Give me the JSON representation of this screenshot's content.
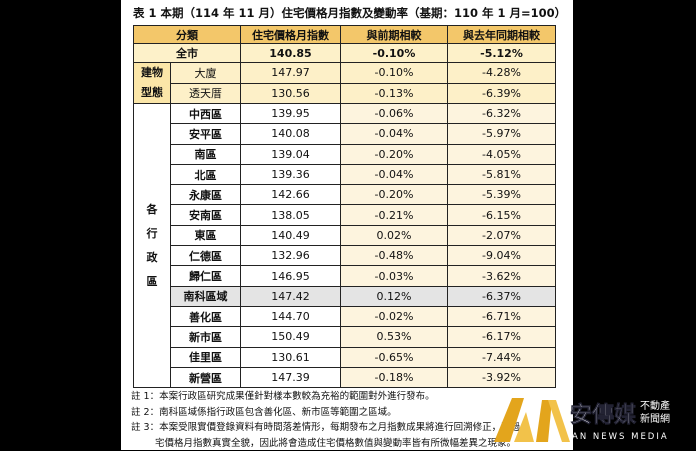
{
  "title": "表 1 本期（114 年 11 月）住宅價格月指數及變動率（基期：110 年 1 月=100）",
  "table": {
    "header": {
      "category": "分類",
      "columns": [
        "住宅價格月指數",
        "與前期相較",
        "與去年同期相較"
      ]
    },
    "total": {
      "label": "全市",
      "cells": [
        "140.85",
        "-0.10%",
        "-5.12%"
      ]
    },
    "groups": [
      {
        "label": "建物型態",
        "rows": [
          {
            "label": "大廈",
            "cells": [
              "147.97",
              "-0.10%",
              "-4.28%"
            ]
          },
          {
            "label": "透天厝",
            "cells": [
              "130.56",
              "-0.13%",
              "-6.39%"
            ]
          }
        ]
      },
      {
        "label": "各行政區",
        "rows": [
          {
            "label": "中西區",
            "cells": [
              "139.95",
              "-0.06%",
              "-6.32%"
            ]
          },
          {
            "label": "安平區",
            "cells": [
              "140.08",
              "-0.04%",
              "-5.97%"
            ]
          },
          {
            "label": "南區",
            "cells": [
              "139.04",
              "-0.20%",
              "-4.05%"
            ]
          },
          {
            "label": "北區",
            "cells": [
              "139.36",
              "-0.04%",
              "-5.81%"
            ]
          },
          {
            "label": "永康區",
            "cells": [
              "142.66",
              "-0.20%",
              "-5.39%"
            ]
          },
          {
            "label": "安南區",
            "cells": [
              "138.05",
              "-0.21%",
              "-6.15%"
            ]
          },
          {
            "label": "東區",
            "cells": [
              "140.49",
              "0.02%",
              "-2.07%"
            ]
          },
          {
            "label": "仁德區",
            "cells": [
              "132.96",
              "-0.48%",
              "-9.04%"
            ]
          },
          {
            "label": "歸仁區",
            "cells": [
              "146.95",
              "-0.03%",
              "-3.62%"
            ]
          },
          {
            "label": "南科區域",
            "cells": [
              "147.42",
              "0.12%",
              "-6.37%"
            ],
            "highlighted": true
          },
          {
            "label": "善化區",
            "cells": [
              "144.70",
              "-0.02%",
              "-6.71%"
            ]
          },
          {
            "label": "新市區",
            "cells": [
              "150.49",
              "0.53%",
              "-6.17%"
            ]
          },
          {
            "label": "佳里區",
            "cells": [
              "130.61",
              "-0.65%",
              "-7.44%"
            ]
          },
          {
            "label": "新營區",
            "cells": [
              "147.39",
              "-0.18%",
              "-3.92%"
            ]
          }
        ]
      }
    ]
  },
  "notes": [
    [
      "註 1：本案行政區研究成果僅針對樣本數較為充裕的範圍對外進行發布。"
    ],
    [
      "註 2：南科區域係指行政區包含善化區、新市區等範圍之區域。"
    ],
    [
      "註 3：本案受限實價登錄資料有時間落差情形，每期發布之月指數成果將進行回溯修正，透過",
      "宅價格月指數真實全貌，因此將會造成住宅價格數值與變動率皆有所微幅差異之現象。"
    ]
  ],
  "watermark": {
    "brand": "安傳媒",
    "sub": [
      "不動產",
      "新聞網"
    ],
    "english": "AN NEWS MEDIA"
  }
}
